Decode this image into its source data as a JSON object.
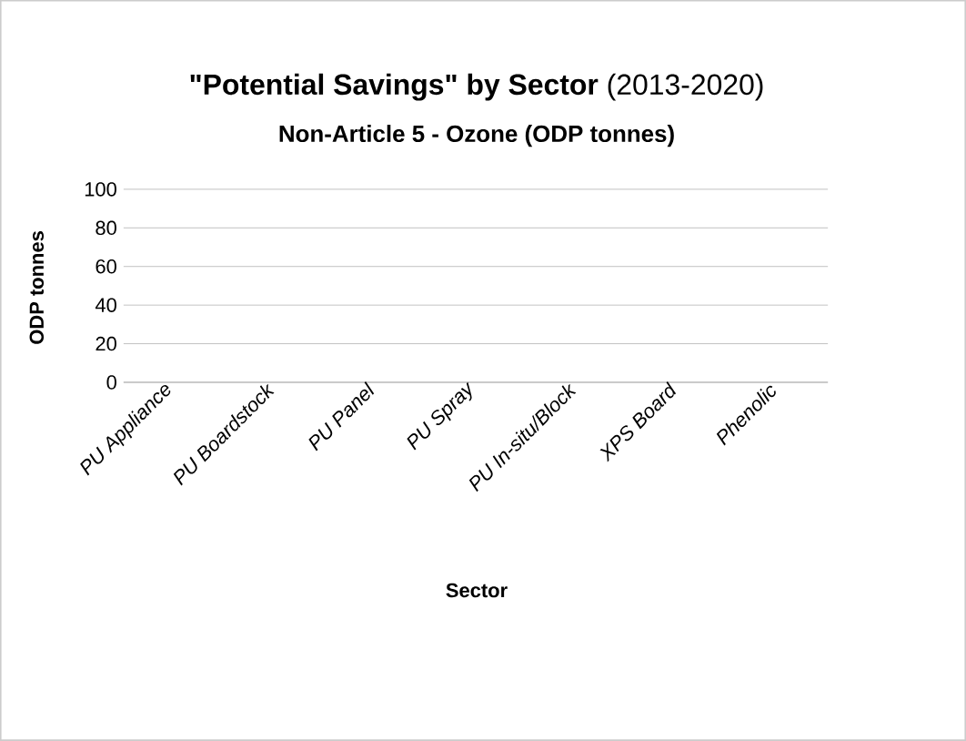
{
  "chart_data": {
    "type": "bar",
    "title": "**\"Potential Savings\" by Sector** (2013-2020)",
    "subtitle": "Non-Article 5  - Ozone (ODP tonnes)",
    "xlabel": "Sector",
    "ylabel": "ODP tonnes",
    "categories": [
      "PU Appliance",
      "PU Boardstock",
      "PU Panel",
      "PU Spray",
      "PU In-situ/Block",
      "XPS Board",
      "Phenolic"
    ],
    "values": [
      0,
      0,
      0,
      0,
      0,
      0,
      0
    ],
    "ylim": [
      0,
      100
    ],
    "yticks": [
      0,
      20,
      40,
      60,
      80,
      100
    ],
    "grid": "y"
  }
}
